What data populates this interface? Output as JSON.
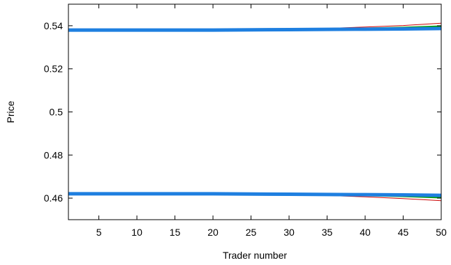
{
  "chart_data": {
    "type": "line",
    "xlabel": "Trader number",
    "ylabel": "Price",
    "xlim": [
      1,
      50
    ],
    "ylim": [
      0.45,
      0.55
    ],
    "x_ticks": [
      5,
      10,
      15,
      20,
      25,
      30,
      35,
      40,
      45,
      50
    ],
    "x_tick_labels": [
      "5",
      "10",
      "15",
      "20",
      "25",
      "30",
      "35",
      "40",
      "45",
      "50"
    ],
    "y_ticks": [
      0.46,
      0.48,
      0.5,
      0.52,
      0.54
    ],
    "y_tick_labels": [
      "0.46",
      "0.48",
      "0.5",
      "0.52",
      "0.54"
    ],
    "grid": false,
    "legend": "none",
    "x": [
      1,
      10,
      20,
      30,
      35,
      40,
      45,
      50
    ],
    "series": [
      {
        "color": "#cc0000",
        "width": 1,
        "values": [
          0.538,
          0.5381,
          0.5382,
          0.5385,
          0.5388,
          0.5394,
          0.5401,
          0.5412
        ]
      },
      {
        "color": "#cc0000",
        "width": 1,
        "values": [
          0.462,
          0.4619,
          0.4618,
          0.4615,
          0.4612,
          0.4606,
          0.4598,
          0.4588
        ]
      },
      {
        "color": "#00a000",
        "width": 2,
        "values": [
          0.538,
          0.538,
          0.5381,
          0.5383,
          0.5385,
          0.5388,
          0.5392,
          0.5398
        ]
      },
      {
        "color": "#00a000",
        "width": 2,
        "values": [
          0.462,
          0.462,
          0.4619,
          0.4617,
          0.4615,
          0.4612,
          0.4608,
          0.4602
        ]
      },
      {
        "color": "#1e7fe0",
        "width": 5,
        "values": [
          0.538,
          0.538,
          0.538,
          0.5382,
          0.5383,
          0.5384,
          0.5385,
          0.5387
        ]
      },
      {
        "color": "#1e7fe0",
        "width": 5,
        "values": [
          0.462,
          0.462,
          0.462,
          0.4618,
          0.4617,
          0.4616,
          0.4615,
          0.4613
        ]
      }
    ]
  }
}
